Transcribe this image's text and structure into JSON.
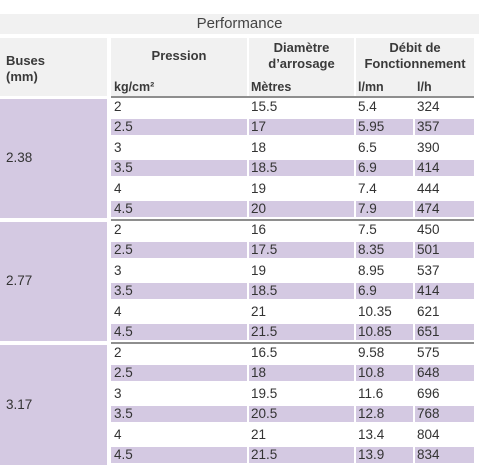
{
  "title": "Performance",
  "headers": {
    "buses": "Buses",
    "buses_unit": "(mm)",
    "pression": "Pression",
    "diametre_line1": "Diamètre",
    "diametre_line2": "d’arrosage",
    "debit_line1": "Débit de",
    "debit_line2": "Fonctionnement"
  },
  "units": {
    "pressure": "kg/cm²",
    "diameter": "Mètres",
    "flow_lmn": "l/mn",
    "flow_lh": "l/h"
  },
  "colors": {
    "shade": "#d4c9e2",
    "header_bg": "#f1f1f1",
    "divider": "#8e8e8e"
  },
  "groups": [
    {
      "buse": "2.38",
      "rows": [
        [
          "2",
          "15.5",
          "5.4",
          "324"
        ],
        [
          "2.5",
          "17",
          "5.95",
          "357"
        ],
        [
          "3",
          "18",
          "6.5",
          "390"
        ],
        [
          "3.5",
          "18.5",
          "6.9",
          "414"
        ],
        [
          "4",
          "19",
          "7.4",
          "444"
        ],
        [
          "4.5",
          "20",
          "7.9",
          "474"
        ]
      ]
    },
    {
      "buse": "2.77",
      "rows": [
        [
          "2",
          "16",
          "7.5",
          "450"
        ],
        [
          "2.5",
          "17.5",
          "8.35",
          "501"
        ],
        [
          "3",
          "19",
          "8.95",
          "537"
        ],
        [
          "3.5",
          "18.5",
          "6.9",
          "414"
        ],
        [
          "4",
          "21",
          "10.35",
          "621"
        ],
        [
          "4.5",
          "21.5",
          "10.85",
          "651"
        ]
      ]
    },
    {
      "buse": "3.17",
      "rows": [
        [
          "2",
          "16.5",
          "9.58",
          "575"
        ],
        [
          "2.5",
          "18",
          "10.8",
          "648"
        ],
        [
          "3",
          "19.5",
          "11.6",
          "696"
        ],
        [
          "3.5",
          "20.5",
          "12.8",
          "768"
        ],
        [
          "4",
          "21",
          "13.4",
          "804"
        ],
        [
          "4.5",
          "21.5",
          "13.9",
          "834"
        ]
      ]
    }
  ]
}
